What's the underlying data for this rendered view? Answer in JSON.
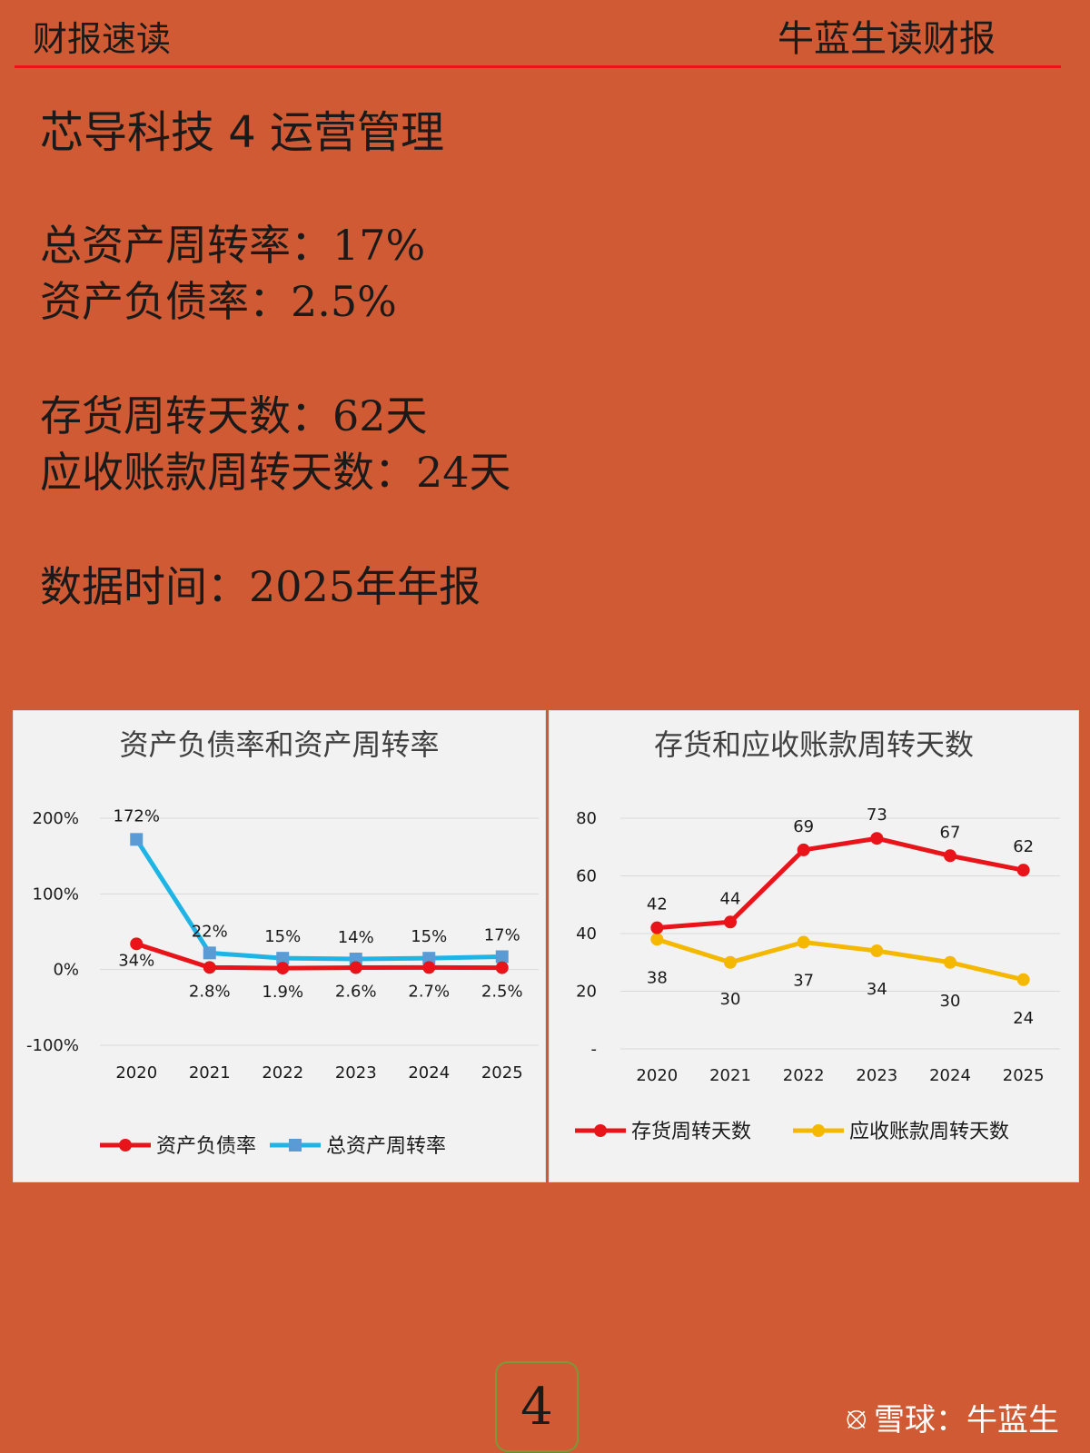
{
  "header": {
    "left": "财报速读",
    "right": "牛蓝生读财报"
  },
  "title": "芯导科技 4 运营管理",
  "metrics": [
    {
      "label": "总资产周转率：",
      "value": "17%"
    },
    {
      "label": "资产负债率：",
      "value": "2.5%"
    },
    {
      "label": "存货周转天数：",
      "value": "62天"
    },
    {
      "label": "应收账款周转天数：",
      "value": "24天"
    },
    {
      "label": "数据时间：",
      "value": "2025年年报"
    }
  ],
  "chart_data": [
    {
      "type": "line",
      "title": "资产负债率和资产周转率",
      "categories": [
        "2020",
        "2021",
        "2022",
        "2023",
        "2024",
        "2025"
      ],
      "yticks": [
        "200%",
        "100%",
        "0%",
        "-100%"
      ],
      "ylim": [
        -100,
        200
      ],
      "grid": true,
      "legend": "bottom",
      "series": [
        {
          "name": "资产负债率",
          "color": "#e8141a",
          "marker": "circle",
          "values": [
            34,
            2.8,
            1.9,
            2.6,
            2.7,
            2.5
          ],
          "labels": [
            "34%",
            "2.8%",
            "1.9%",
            "2.6%",
            "2.7%",
            "2.5%"
          ]
        },
        {
          "name": "总资产周转率",
          "color": "#1fb4e6",
          "marker": "square",
          "marker_color": "#5b9bd5",
          "values": [
            172,
            22,
            15,
            14,
            15,
            17
          ],
          "labels": [
            "172%",
            "22%",
            "15%",
            "14%",
            "15%",
            "17%"
          ]
        }
      ]
    },
    {
      "type": "line",
      "title": "存货和应收账款周转天数",
      "categories": [
        "2020",
        "2021",
        "2022",
        "2023",
        "2024",
        "2025"
      ],
      "yticks": [
        "80",
        "60",
        "40",
        "20",
        "-"
      ],
      "ylim": [
        0,
        80
      ],
      "grid": true,
      "legend": "bottom",
      "series": [
        {
          "name": "存货周转天数",
          "color": "#e8141a",
          "marker": "circle",
          "values": [
            42,
            44,
            69,
            73,
            67,
            62
          ],
          "labels": [
            "42",
            "44",
            "69",
            "73",
            "67",
            "62"
          ]
        },
        {
          "name": "应收账款周转天数",
          "color": "#f5b800",
          "marker": "circle",
          "values": [
            38,
            30,
            37,
            34,
            30,
            24
          ],
          "labels": [
            "38",
            "30",
            "37",
            "34",
            "30",
            "24"
          ]
        }
      ]
    }
  ],
  "page_number": "4",
  "watermark": {
    "icon": "xueqiu-icon",
    "text": "雪球：牛蓝生"
  }
}
